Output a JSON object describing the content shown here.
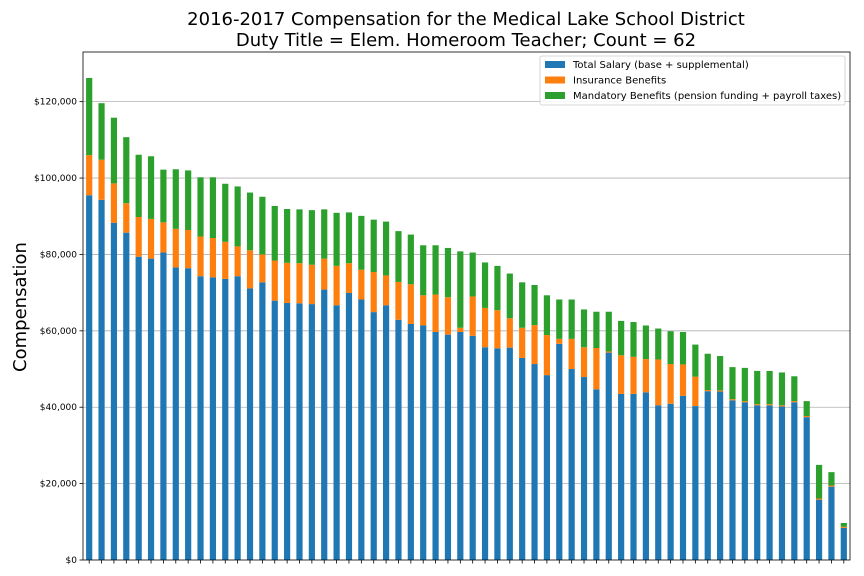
{
  "chart_data": {
    "type": "bar",
    "stacked": true,
    "title": [
      "2016-2017 Compensation for the Medical Lake School District",
      "Duty Title = Elem. Homeroom Teacher; Count = 62"
    ],
    "xlabel": "",
    "ylabel": "Compensation",
    "ylim": [
      0,
      133000
    ],
    "yticks": [
      0,
      20000,
      40000,
      60000,
      80000,
      100000,
      120000
    ],
    "ytick_labels": [
      "$0",
      "$20,000",
      "$40,000",
      "$60,000",
      "$80,000",
      "$100,000",
      "$120,000"
    ],
    "grid": "horizontal",
    "legend_position": "top-right",
    "series": [
      {
        "name": "Total Salary (base + supplemental)",
        "color": "#1f77b4",
        "values": [
          95500,
          94300,
          88300,
          85700,
          79400,
          78900,
          80500,
          76600,
          76400,
          74300,
          74000,
          73600,
          74300,
          71100,
          72700,
          67900,
          67300,
          67200,
          67000,
          70800,
          66700,
          69900,
          68200,
          64900,
          66700,
          62900,
          61800,
          61400,
          59700,
          59000,
          59700,
          58700,
          55700,
          55400,
          55600,
          52900,
          51300,
          48400,
          56600,
          50000,
          47900,
          44700,
          54300,
          43500,
          43500,
          43900,
          40500,
          40900,
          43000,
          40300,
          44200,
          44100,
          41800,
          41300,
          40500,
          40500,
          40200,
          41300,
          37400,
          15800,
          19200,
          8400
        ]
      },
      {
        "name": "Insurance Benefits",
        "color": "#ff7f0e",
        "values": [
          10500,
          10500,
          10300,
          7700,
          10400,
          10400,
          7900,
          10100,
          10000,
          10400,
          10300,
          9700,
          7800,
          10000,
          7300,
          10500,
          10500,
          10500,
          10300,
          8100,
          10300,
          7800,
          7800,
          10500,
          7800,
          9900,
          10400,
          7900,
          9800,
          9800,
          1100,
          10300,
          10300,
          10000,
          7700,
          7900,
          10200,
          10500,
          1300,
          7900,
          7800,
          10800,
          300,
          10100,
          9700,
          8700,
          12000,
          10400,
          8200,
          7700,
          300,
          300,
          300,
          300,
          300,
          300,
          300,
          300,
          300,
          300,
          300,
          300
        ]
      },
      {
        "name": "Mandatory Benefits (pension funding + payroll taxes)",
        "color": "#2ca02c",
        "values": [
          20200,
          14800,
          17200,
          17300,
          16300,
          16400,
          13800,
          15600,
          15600,
          15500,
          15900,
          15200,
          15700,
          15100,
          15100,
          14300,
          14100,
          14100,
          14300,
          12900,
          13900,
          13300,
          14100,
          13700,
          14100,
          13300,
          13000,
          13100,
          12900,
          12900,
          20000,
          11500,
          11900,
          11600,
          11700,
          11900,
          10500,
          10400,
          10300,
          10300,
          9900,
          9500,
          10400,
          9000,
          9100,
          8800,
          8100,
          8600,
          8500,
          8400,
          9500,
          9000,
          8400,
          8700,
          8700,
          8700,
          8600,
          6500,
          3900,
          8800,
          3500,
          1000
        ]
      }
    ]
  }
}
